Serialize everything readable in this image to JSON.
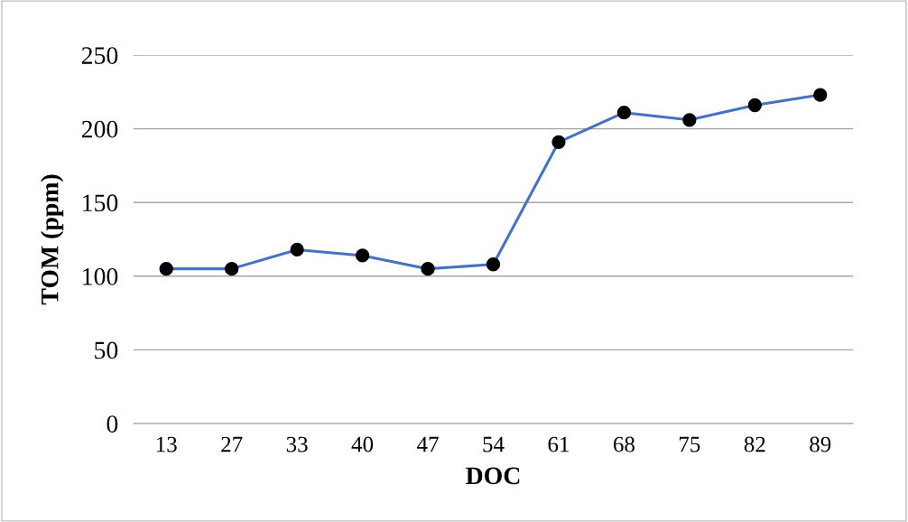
{
  "chart_data": {
    "type": "line",
    "xlabel": "DOC",
    "ylabel": "TOM (ppm)",
    "categories": [
      "13",
      "27",
      "33",
      "40",
      "47",
      "54",
      "61",
      "68",
      "75",
      "82",
      "89"
    ],
    "series": [
      {
        "color": "#4472c4",
        "values": [
          105,
          105,
          118,
          114,
          105,
          108,
          191,
          211,
          206,
          216,
          223
        ]
      }
    ],
    "ylim": [
      0,
      250
    ],
    "yticks": [
      0,
      50,
      100,
      150,
      200,
      250
    ],
    "grid": "y",
    "marker": "circle",
    "line_style": "solid"
  }
}
